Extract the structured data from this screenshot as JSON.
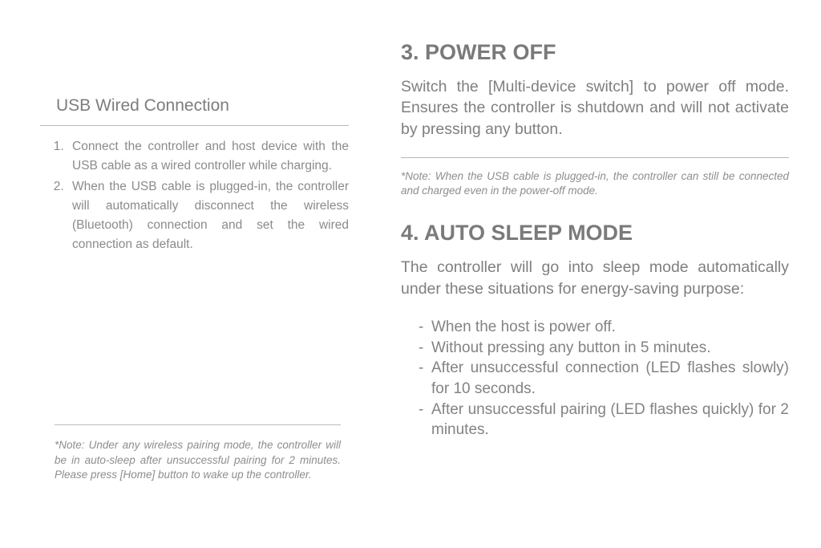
{
  "left": {
    "title": "USB Wired Connection",
    "steps": [
      "Connect the controller and host device with the USB cable as a wired controller while charging.",
      "When the USB cable is plugged-in, the controller will automatically disconnect the wireless (Bluetooth) connection and set the wired connection as default."
    ],
    "note": "*Note: Under any wireless pairing mode, the controller will be in auto-sleep after unsuccessful pairing for 2 minutes. Please press [Home] button to wake up the controller."
  },
  "right": {
    "section3": {
      "title": "3. POWER OFF",
      "body": "Switch the [Multi-device switch] to power off mode. Ensures the controller is shutdown and will not activate by pressing any button.",
      "note": "*Note: When the USB cable is plugged-in, the controller can still be connected and charged even in the power-off mode."
    },
    "section4": {
      "title": "4. AUTO SLEEP MODE",
      "body": "The controller will go into sleep mode automatically under these situations for energy-saving purpose:",
      "items": [
        "When the host is power off.",
        "Without pressing any button in 5 minutes.",
        "After unsuccessful connection (LED flashes slowly) for 10 seconds.",
        "After unsuccessful pairing (LED flashes quickly) for 2 minutes."
      ]
    }
  },
  "style": {
    "background": "#ffffff",
    "textColor": "#808080",
    "headingColor": "#7a7a7a",
    "ruleColor": "#b8b8b8",
    "titleFontSize": 27,
    "bodyFontSize": 19.5,
    "noteFontSize": 13.5
  }
}
